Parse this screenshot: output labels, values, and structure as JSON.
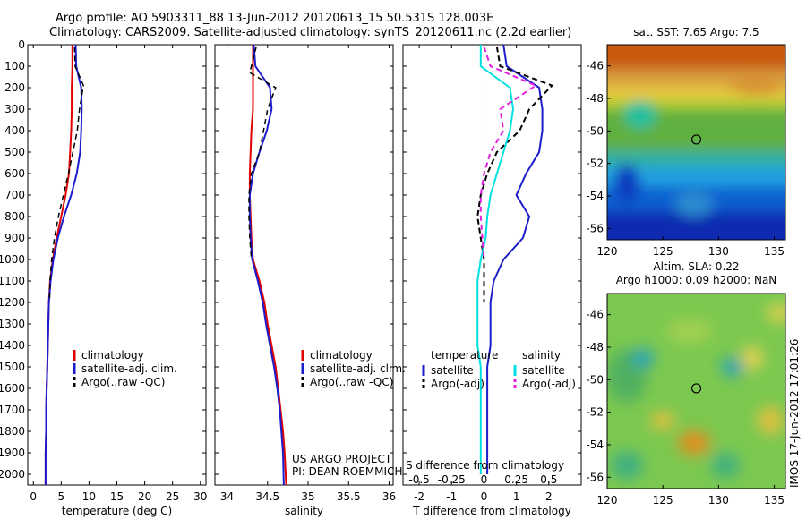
{
  "header": {
    "line1": "Argo profile: AO 5903311_88 13-Jun-2012 20120613_15 50.531S 128.003E",
    "line2": "Climatology: CARS2009. Satellite-adjusted climatology: synTS_20120611.nc (2.2d earlier)"
  },
  "colors": {
    "climatology": "#e00000",
    "satellite": "#1c1ccc",
    "argo": "#000000",
    "salinity_satellite": "#00e0e0",
    "salinity_argo": "#e020e0"
  },
  "watermark": "IMOS 17-Jun-2012 17:01:26",
  "chart_data": [
    {
      "type": "line",
      "panel": "temperature",
      "xlabel": "temperature (deg C)",
      "ylabel": "",
      "xlim": [
        -1,
        31
      ],
      "ylim": [
        2050,
        0
      ],
      "xticks": [
        0,
        5,
        10,
        15,
        20,
        25,
        30
      ],
      "yticks": [
        0,
        100,
        200,
        300,
        400,
        500,
        600,
        700,
        800,
        900,
        1000,
        1100,
        1200,
        1300,
        1400,
        1500,
        1600,
        1700,
        1800,
        1900,
        2000
      ],
      "legend": [
        "climatology",
        "satellite-adj. clim.",
        "Argo(..raw -QC)"
      ],
      "series": [
        {
          "name": "climatology",
          "color": "#e00000",
          "width": 2,
          "dash": "",
          "x": [
            7.0,
            7.0,
            6.9,
            6.9,
            6.8,
            6.6,
            6.4,
            5.8,
            5.0,
            4.2,
            3.5,
            3.0,
            2.8,
            2.7,
            2.6,
            2.5,
            2.4,
            2.3,
            2.3,
            2.2,
            2.2
          ],
          "y": [
            0,
            100,
            200,
            300,
            400,
            500,
            600,
            700,
            800,
            900,
            1000,
            1100,
            1200,
            1300,
            1400,
            1500,
            1600,
            1700,
            1800,
            1900,
            2050
          ]
        },
        {
          "name": "satellite-adj. clim.",
          "color": "#1c1ccc",
          "width": 2,
          "dash": "",
          "x": [
            7.6,
            7.7,
            8.6,
            8.7,
            8.6,
            8.4,
            7.8,
            6.8,
            5.5,
            4.4,
            3.6,
            3.1,
            2.8,
            2.7,
            2.6,
            2.5,
            2.4,
            2.3,
            2.3,
            2.2,
            2.2
          ],
          "y": [
            0,
            100,
            200,
            300,
            400,
            500,
            600,
            700,
            800,
            900,
            1000,
            1100,
            1200,
            1300,
            1400,
            1500,
            1600,
            1700,
            1800,
            1900,
            2050
          ]
        },
        {
          "name": "Argo(..raw -QC)",
          "color": "#000000",
          "width": 1.5,
          "dash": "6,4",
          "x": [
            7.4,
            7.5,
            9.0,
            8.3,
            7.9,
            7.1,
            6.3,
            5.4,
            4.5,
            3.8,
            3.3,
            3.0,
            2.9
          ],
          "y": [
            10,
            100,
            190,
            300,
            400,
            500,
            600,
            700,
            800,
            900,
            1000,
            1100,
            1200
          ]
        }
      ]
    },
    {
      "type": "line",
      "panel": "salinity",
      "xlabel": "salinity",
      "ylabel": "",
      "xlim": [
        33.85,
        36.05
      ],
      "ylim": [
        2050,
        0
      ],
      "xticks": [
        34,
        34.5,
        35,
        35.5,
        36
      ],
      "legend": [
        "climatology",
        "satellite-adj. clim.",
        "Argo(..raw -QC)"
      ],
      "annotation_line1": "US ARGO PROJECT",
      "annotation_line2": "PI: DEAN ROEMMICH",
      "series": [
        {
          "name": "climatology",
          "color": "#e00000",
          "width": 2,
          "dash": "",
          "x": [
            34.32,
            34.32,
            34.32,
            34.32,
            34.3,
            34.29,
            34.28,
            34.28,
            34.29,
            34.3,
            34.32,
            34.4,
            34.46,
            34.5,
            34.55,
            34.6,
            34.63,
            34.66,
            34.69,
            34.71,
            34.73
          ],
          "y": [
            0,
            100,
            200,
            300,
            400,
            500,
            600,
            700,
            800,
            900,
            1000,
            1100,
            1200,
            1300,
            1400,
            1500,
            1600,
            1700,
            1800,
            1900,
            2050
          ]
        },
        {
          "name": "satellite-adj. clim.",
          "color": "#1c1ccc",
          "width": 2,
          "dash": "",
          "x": [
            34.33,
            34.35,
            34.53,
            34.55,
            34.49,
            34.4,
            34.32,
            34.28,
            34.28,
            34.29,
            34.31,
            34.38,
            34.44,
            34.48,
            34.53,
            34.58,
            34.62,
            34.65,
            34.67,
            34.69,
            34.7
          ],
          "y": [
            0,
            100,
            200,
            300,
            400,
            500,
            600,
            700,
            800,
            900,
            1000,
            1100,
            1200,
            1300,
            1400,
            1500,
            1600,
            1700,
            1800,
            1900,
            2050
          ]
        },
        {
          "name": "Argo(..raw -QC)",
          "color": "#000000",
          "width": 1.5,
          "dash": "6,4",
          "x": [
            34.36,
            34.28,
            34.6,
            34.5,
            34.45,
            34.4,
            34.3,
            34.27,
            34.27,
            34.28,
            34.3
          ],
          "y": [
            10,
            130,
            200,
            300,
            400,
            500,
            600,
            700,
            800,
            900,
            1000
          ]
        }
      ]
    },
    {
      "type": "line",
      "panel": "difference",
      "xlabel": "T difference from climatology",
      "xlabel2": "S difference from climatology",
      "xlim": [
        -2.5,
        3
      ],
      "ylim": [
        2050,
        0
      ],
      "xticks": [
        -2,
        -1,
        0,
        1,
        2
      ],
      "xticks2": [
        -0.5,
        -0.25,
        0,
        0.25,
        0.5
      ],
      "legend_header_t": "temperature",
      "legend_header_s": "salinity",
      "legend_items_t": [
        "satellite",
        "Argo(-adj)"
      ],
      "legend_items_s": [
        "satellite",
        "Argo(-adj)"
      ],
      "series": [
        {
          "name": "T satellite",
          "color": "#1c1ccc",
          "width": 2,
          "dash": "",
          "x": [
            0.6,
            0.7,
            1.7,
            1.8,
            1.8,
            1.7,
            1.3,
            1.0,
            1.4,
            1.2,
            0.6,
            0.3,
            0.2,
            0.2,
            0.2,
            0.1,
            0.1,
            0.1,
            0.1,
            0.1,
            0.1
          ],
          "y": [
            0,
            100,
            200,
            300,
            400,
            500,
            600,
            700,
            800,
            900,
            1000,
            1100,
            1200,
            1300,
            1400,
            1500,
            1600,
            1700,
            1800,
            1900,
            2000
          ]
        },
        {
          "name": "T Argo(-adj)",
          "color": "#000000",
          "width": 2,
          "dash": "6,4",
          "x": [
            0.4,
            0.5,
            2.1,
            1.4,
            1.1,
            0.4,
            0.1,
            -0.1,
            -0.2,
            -0.1,
            0.0,
            0.0,
            0.0
          ],
          "y": [
            10,
            100,
            190,
            300,
            400,
            500,
            600,
            700,
            800,
            900,
            1000,
            1100,
            1200
          ]
        },
        {
          "name": "S satellite",
          "color": "#00e0e0",
          "width": 2,
          "dash": "",
          "x": [
            -0.1,
            -0.1,
            0.8,
            0.9,
            0.8,
            0.6,
            0.4,
            0.2,
            0.1,
            0.05,
            -0.1,
            -0.2,
            -0.2,
            -0.2,
            -0.2,
            -0.1,
            -0.1,
            -0.1,
            -0.1,
            -0.1,
            -0.1
          ],
          "y": [
            0,
            100,
            200,
            300,
            400,
            500,
            600,
            700,
            800,
            900,
            1000,
            1100,
            1200,
            1300,
            1400,
            1500,
            1600,
            1700,
            1800,
            1900,
            2000
          ]
        },
        {
          "name": "S Argo(-adj)",
          "color": "#e020e0",
          "width": 2,
          "dash": "6,4",
          "x": [
            0.0,
            0.2,
            1.6,
            0.5,
            0.6,
            0.2,
            0.0,
            -0.1,
            -0.1,
            -0.05,
            0.0
          ],
          "y": [
            10,
            100,
            190,
            300,
            400,
            500,
            600,
            700,
            800,
            900,
            1000
          ]
        }
      ]
    },
    {
      "type": "heatmap",
      "panel": "sst_map",
      "title": "sat. SST: 7.65 Argo: 7.5",
      "xlim": [
        120,
        136
      ],
      "ylim": [
        -56.7,
        -44.7
      ],
      "xticks": [
        120,
        125,
        130,
        135
      ],
      "yticks": [
        -46,
        -48,
        -50,
        -52,
        -54,
        -56
      ],
      "marker": {
        "lon": 128.003,
        "lat": -50.531
      }
    },
    {
      "type": "heatmap",
      "panel": "sla_map",
      "title": "Altim. SLA: 0.22",
      "subtitle": "Argo h1000: 0.09 h2000: NaN",
      "xlim": [
        120,
        136
      ],
      "ylim": [
        -56.7,
        -44.7
      ],
      "xticks": [
        120,
        125,
        130,
        135
      ],
      "yticks": [
        -46,
        -48,
        -50,
        -52,
        -54,
        -56
      ],
      "marker": {
        "lon": 128.003,
        "lat": -50.531
      }
    }
  ]
}
